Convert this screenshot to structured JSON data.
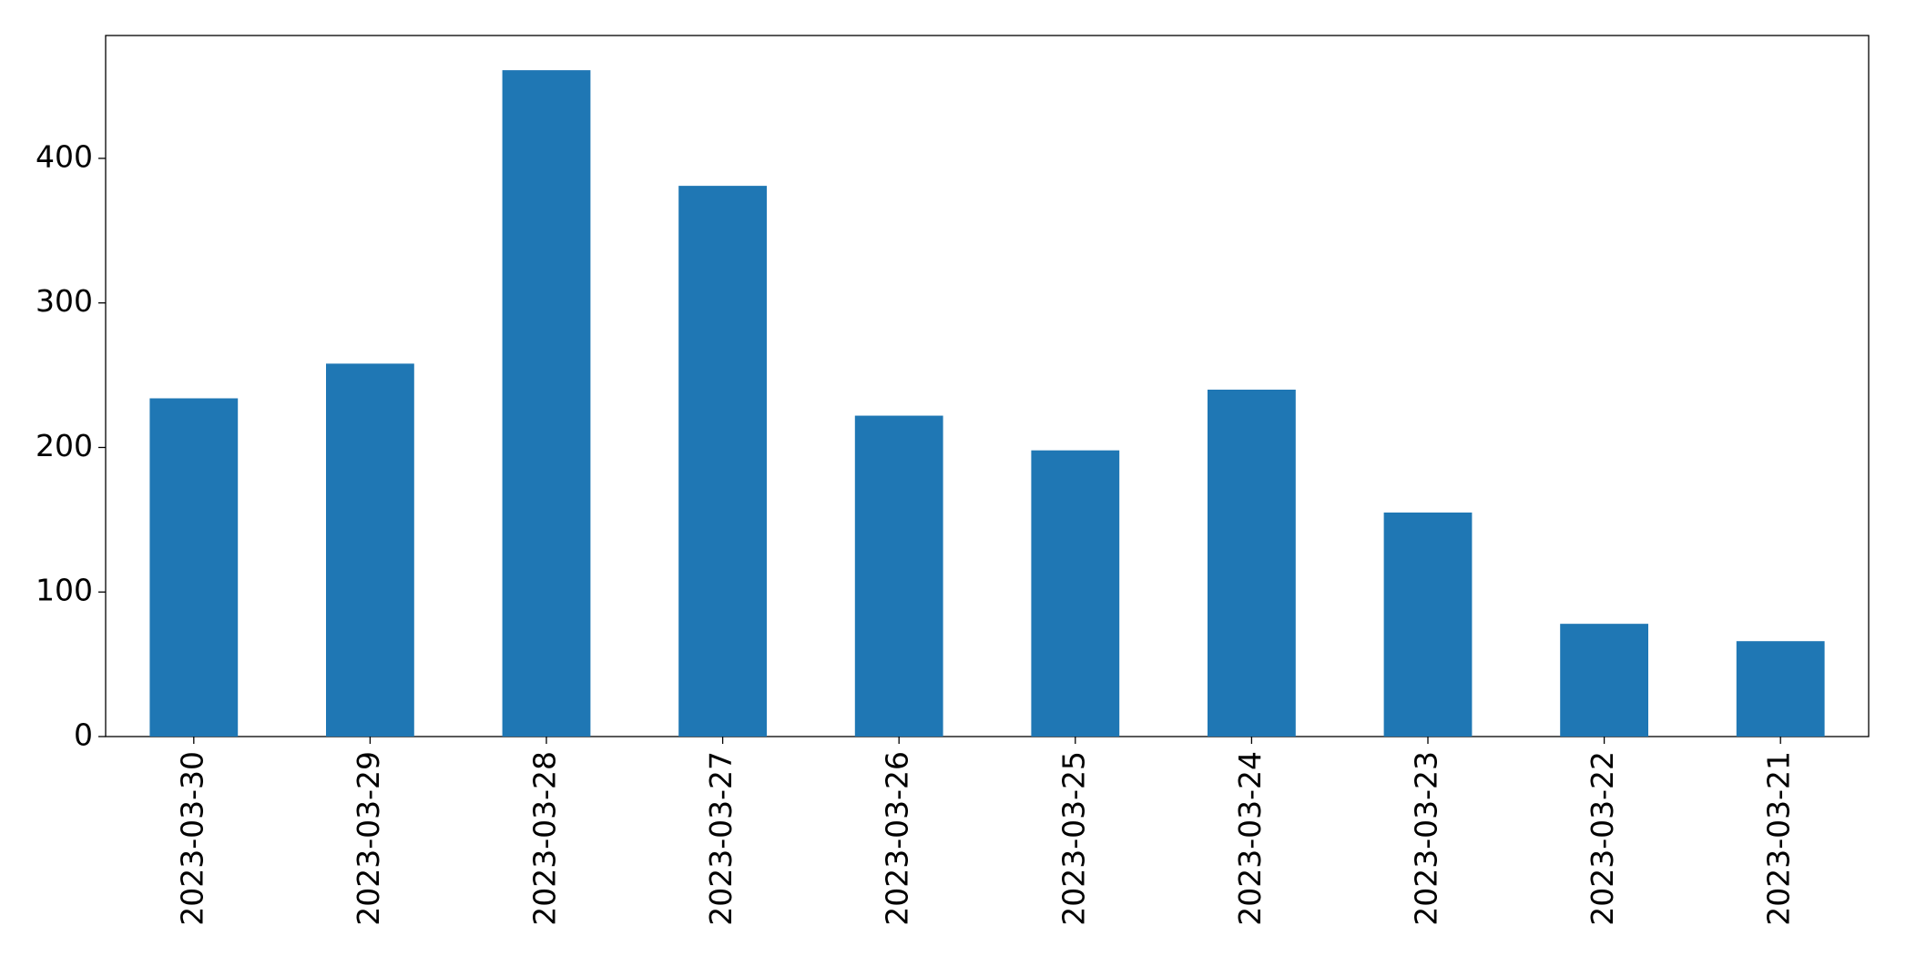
{
  "chart_data": {
    "type": "bar",
    "categories": [
      "2023-03-30",
      "2023-03-29",
      "2023-03-28",
      "2023-03-27",
      "2023-03-26",
      "2023-03-25",
      "2023-03-24",
      "2023-03-23",
      "2023-03-22",
      "2023-03-21"
    ],
    "values": [
      234,
      258,
      461,
      381,
      222,
      198,
      240,
      155,
      78,
      66
    ],
    "color": "#1f77b4",
    "ylim": [
      0,
      485
    ],
    "yticks": [
      0,
      100,
      200,
      300,
      400
    ],
    "grid": false
  }
}
